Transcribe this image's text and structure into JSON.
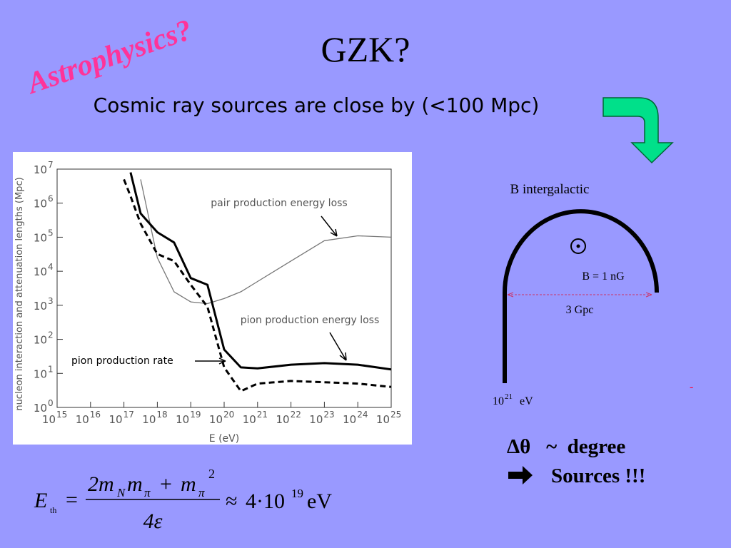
{
  "tag": "Astrophysics?",
  "title": "GZK?",
  "subtitle": "Cosmic ray sources are close by (<100 Mpc)",
  "chart_data": {
    "type": "line",
    "x_label": "E (eV)",
    "y_label": "nucleon interaction and attenuation lengths (Mpc)",
    "log_x": true,
    "log_y": true,
    "x": [
      1e+17,
      1.58e+17,
      3.16e+17,
      1e+18,
      3.16e+18,
      1e+19,
      3.16e+19,
      1e+20,
      3.16e+20,
      1e+21,
      1e+22,
      1e+23,
      1e+24,
      1e+25
    ],
    "series": [
      {
        "name": "pair production energy loss",
        "color": "#777777",
        "width": 1.3,
        "dash": false,
        "values": [
          null,
          null,
          5000000.0,
          25000.0,
          2500.0,
          1260.0,
          1120.0,
          1580.0,
          2500.0,
          5000.0,
          20000.0,
          79000.0,
          110000.0,
          100000.0
        ]
      },
      {
        "name": "pion production energy loss",
        "color": "#000000",
        "width": 3,
        "dash": false,
        "values": [
          null,
          8000000.0,
          500000.0,
          140000.0,
          70000.0,
          6300.0,
          4000.0,
          50,
          15,
          14,
          18,
          20,
          18,
          13
        ]
      },
      {
        "name": "pion production rate",
        "color": "#000000",
        "width": 3,
        "dash": true,
        "values": [
          5000000.0,
          1600000.0,
          250000.0,
          32000.0,
          20000.0,
          4000.0,
          900,
          15,
          3,
          5,
          6,
          5.5,
          5,
          4
        ]
      }
    ],
    "xlim": [
      1000000000000000.0,
      1e+25
    ],
    "ylim": [
      1,
      10000000.0
    ],
    "xticks": [
      {
        "value": 1000000000000000.0,
        "label": "10",
        "sup": "15"
      },
      {
        "value": 1e+16,
        "label": "10",
        "sup": "16"
      },
      {
        "value": 1e+17,
        "label": "10",
        "sup": "17"
      },
      {
        "value": 1e+18,
        "label": "10",
        "sup": "18"
      },
      {
        "value": 1e+19,
        "label": "10",
        "sup": "19"
      },
      {
        "value": 1e+20,
        "label": "10",
        "sup": "20"
      },
      {
        "value": 1e+21,
        "label": "10",
        "sup": "21"
      },
      {
        "value": 1e+22,
        "label": "10",
        "sup": "22"
      },
      {
        "value": 1e+23,
        "label": "10",
        "sup": "23"
      },
      {
        "value": 1e+24,
        "label": "10",
        "sup": "24"
      },
      {
        "value": 1e+25,
        "label": "10",
        "sup": "25"
      }
    ],
    "yticks": [
      {
        "value": 1,
        "label": "10",
        "sup": "0"
      },
      {
        "value": 10,
        "label": "10",
        "sup": "1"
      },
      {
        "value": 100,
        "label": "10",
        "sup": "2"
      },
      {
        "value": 1000,
        "label": "10",
        "sup": "3"
      },
      {
        "value": 10000,
        "label": "10",
        "sup": "4"
      },
      {
        "value": 100000,
        "label": "10",
        "sup": "5"
      },
      {
        "value": 1000000,
        "label": "10",
        "sup": "6"
      },
      {
        "value": 10000000,
        "label": "10",
        "sup": "7"
      }
    ]
  },
  "diagram": {
    "field": "B intergalactic",
    "strength": "B = 1 nG",
    "size": "3 Gpc",
    "energy": {
      "base": "10",
      "exp": "21",
      "unit": "eV"
    },
    "mark": "-"
  },
  "bullets": [
    "Δθ   ~  degree",
    "Sources !!!"
  ],
  "formula": [
    "E",
    "th",
    "=",
    "2m",
    "N",
    "m",
    "π",
    "+",
    "m",
    "π",
    "2",
    "4ε",
    "≈",
    "4·10",
    "19",
    "eV"
  ]
}
